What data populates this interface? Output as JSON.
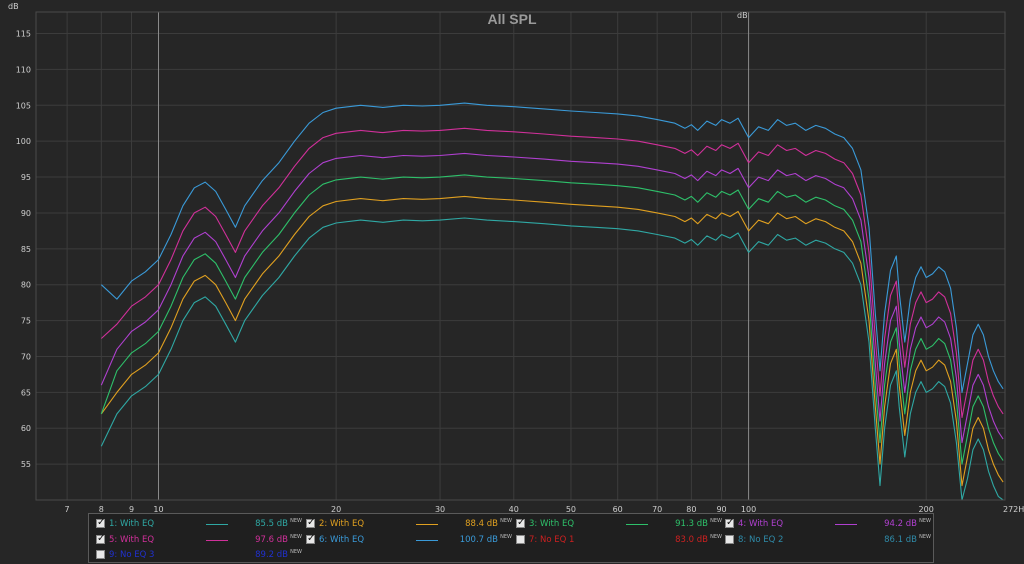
{
  "chart_data": {
    "type": "line",
    "title": "All SPL",
    "ylabel": "dB",
    "xunit": "Hz",
    "xscale": "log",
    "xlim": [
      6.2,
      272
    ],
    "ylim": [
      50,
      118
    ],
    "yticks": [
      55,
      60,
      65,
      70,
      75,
      80,
      85,
      90,
      95,
      100,
      105,
      110,
      115
    ],
    "xticks": [
      {
        "v": 7,
        "label": "7"
      },
      {
        "v": 8,
        "label": "8"
      },
      {
        "v": 9,
        "label": "9"
      },
      {
        "v": 10,
        "label": "10"
      },
      {
        "v": 20,
        "label": "20"
      },
      {
        "v": 30,
        "label": "30"
      },
      {
        "v": 40,
        "label": "40"
      },
      {
        "v": 50,
        "label": "50"
      },
      {
        "v": 60,
        "label": "60"
      },
      {
        "v": 70,
        "label": "70"
      },
      {
        "v": 80,
        "label": "80"
      },
      {
        "v": 90,
        "label": "90"
      },
      {
        "v": 100,
        "label": "100"
      },
      {
        "v": 200,
        "label": "200"
      },
      {
        "v": 272,
        "label": "272Hz"
      }
    ],
    "major_x": [
      10,
      100
    ],
    "grid": true,
    "legend_position": "bottom",
    "base_curve": {
      "x": [
        8,
        8.5,
        9,
        9.5,
        10,
        10.5,
        11,
        11.5,
        12,
        12.5,
        13,
        13.5,
        14,
        15,
        16,
        17,
        18,
        19,
        20,
        22,
        24,
        26,
        28,
        30,
        33,
        36,
        40,
        45,
        50,
        55,
        60,
        65,
        70,
        75,
        78,
        80,
        82,
        85,
        88,
        90,
        93,
        96,
        100,
        104,
        108,
        112,
        116,
        120,
        125,
        130,
        135,
        140,
        145,
        150,
        155,
        160,
        164,
        167,
        170,
        174,
        178,
        180,
        184,
        188,
        192,
        196,
        200,
        205,
        210,
        215,
        220,
        225,
        230,
        235,
        240,
        245,
        250,
        255,
        260,
        265,
        270
      ],
      "y": [
        57.5,
        62,
        64.5,
        65.8,
        67.5,
        71,
        75,
        77.5,
        78.3,
        77,
        74.5,
        72,
        75,
        78.5,
        81,
        84,
        86.5,
        88,
        88.6,
        89,
        88.7,
        89,
        88.9,
        89,
        89.3,
        89,
        88.8,
        88.5,
        88.2,
        88,
        87.8,
        87.5,
        87,
        86.5,
        85.8,
        86.3,
        85.5,
        86.8,
        86.2,
        87,
        86.5,
        87.2,
        84.5,
        86,
        85.5,
        87,
        86.2,
        86.5,
        85.5,
        86.2,
        85.8,
        85,
        84.5,
        83,
        80,
        72,
        60,
        52,
        60,
        66,
        68,
        63,
        56,
        62,
        65,
        66.5,
        65,
        65.5,
        66.5,
        65.8,
        63.5,
        58,
        49,
        53,
        57,
        58.5,
        57,
        54,
        52,
        50.5,
        49.5
      ],
      "first_point_by_series": [
        57.5,
        62,
        62,
        66,
        72.5,
        80
      ]
    },
    "series": [
      {
        "name": "1: With EQ",
        "value": "85.5 dB",
        "offset": 0,
        "color": "#2fa8a4",
        "checked": true
      },
      {
        "name": "2: With EQ",
        "value": "88.4 dB",
        "offset": 3,
        "color": "#e0a020",
        "checked": true
      },
      {
        "name": "3: With EQ",
        "value": "91.3 dB",
        "offset": 6,
        "color": "#2ec06a",
        "checked": true
      },
      {
        "name": "4: With EQ",
        "value": "94.2 dB",
        "offset": 9,
        "color": "#b040d0",
        "checked": true
      },
      {
        "name": "5: With EQ",
        "value": "97.6 dB",
        "offset": 12.5,
        "color": "#d0309a",
        "checked": true
      },
      {
        "name": "6: With EQ",
        "value": "100.7 dB",
        "offset": 16,
        "color": "#3a9ad8",
        "checked": true
      },
      {
        "name": "7: No EQ 1",
        "value": "83.0 dB",
        "color": "#cc2020",
        "checked": false
      },
      {
        "name": "8: No EQ 2",
        "value": "86.1 dB",
        "color": "#2f8aa8",
        "checked": false
      },
      {
        "name": "9: No EQ 3",
        "value": "89.2 dB",
        "color": "#2030d0",
        "checked": false
      }
    ],
    "new_tag": "NEW"
  }
}
